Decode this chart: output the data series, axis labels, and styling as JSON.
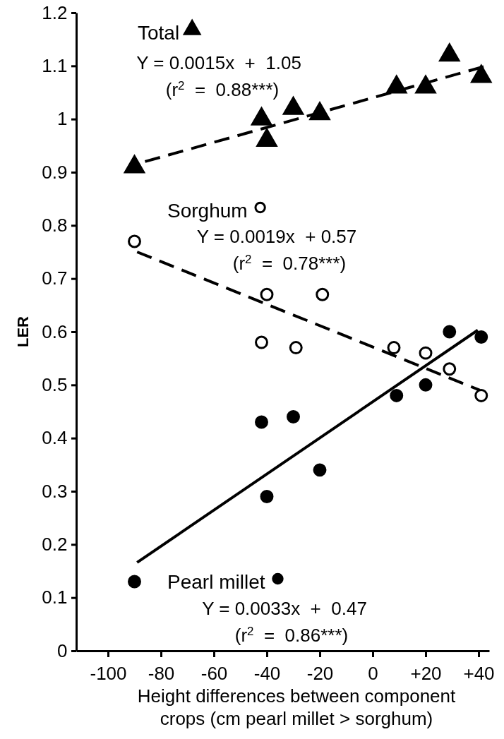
{
  "chart_data": {
    "type": "scatter",
    "xlabel": "Height differences between component crops (cm pearl millet > sorghum)",
    "ylabel": "LER",
    "xlim": [
      -112,
      44
    ],
    "ylim": [
      0,
      1.2
    ],
    "xticks": [
      -100,
      -80,
      -60,
      -40,
      -20,
      0,
      {
        "value": 20,
        "label": "+20"
      },
      {
        "value": 40,
        "label": "+40"
      }
    ],
    "yticks": [
      0,
      0.1,
      0.2,
      0.3,
      0.4,
      0.5,
      0.6,
      0.7,
      0.8,
      0.9,
      1.0,
      1.1,
      1.2
    ],
    "grid": false,
    "legend": "top left",
    "series": [
      {
        "name": "Total",
        "marker": "triangle",
        "color": "#000000",
        "x": [
          -90,
          -42,
          -40,
          -30,
          -20,
          9,
          20,
          29,
          41
        ],
        "values": [
          0.91,
          1.0,
          0.96,
          1.02,
          1.01,
          1.06,
          1.06,
          1.12,
          1.08
        ]
      },
      {
        "type": "line",
        "line_style": "dashed",
        "color": "#000000",
        "x": [
          -86,
          43
        ],
        "values": [
          0.92,
          1.1
        ]
      },
      {
        "name": "Sorghum",
        "marker": "circle",
        "color": "#ffffff",
        "x": [
          -90,
          -40,
          -42,
          -29,
          -19,
          8,
          20,
          29,
          41
        ],
        "values": [
          0.77,
          0.67,
          0.58,
          0.57,
          0.67,
          0.57,
          0.56,
          0.53,
          0.48
        ]
      },
      {
        "type": "line",
        "line_style": "dashed",
        "color": "#000000",
        "x": [
          -89,
          40.5
        ],
        "values": [
          0.75,
          0.49
        ]
      },
      {
        "name": "Pearl millet",
        "marker": "circle",
        "color": "#000000",
        "x": [
          -90,
          -42,
          -30,
          -40,
          -20,
          9,
          20,
          29,
          41
        ],
        "values": [
          0.13,
          0.43,
          0.44,
          0.29,
          0.34,
          0.48,
          0.5,
          0.6,
          0.59
        ]
      },
      {
        "type": "line",
        "line_style": "solid",
        "color": "#000000",
        "x": [
          -89,
          39.7
        ],
        "values": [
          0.166,
          0.603
        ]
      }
    ],
    "annotations": [
      "Y = 0.0015x  +  1.05",
      "(r$^{2}$  =  0.88***)",
      "Y = 0.0019x  + 0.57",
      "(r$^{2}$  =  0.78***)",
      "Y = 0.0033x  +  0.47",
      "(r$^{2}$  =  0.86***)"
    ]
  }
}
